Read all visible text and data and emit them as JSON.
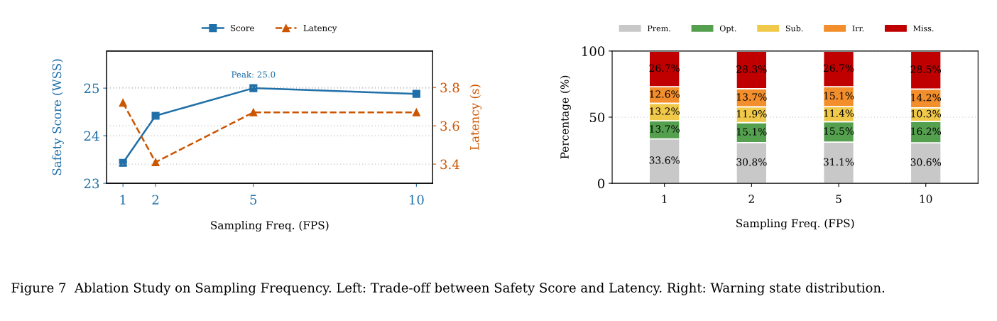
{
  "chart_data": [
    {
      "type": "line",
      "xlabel": "Sampling Freq. (FPS)",
      "ylabel": "Safety Score (WSS)",
      "y2label": "Latency (s)",
      "x": [
        1,
        2,
        5,
        10
      ],
      "series": [
        {
          "name": "Score",
          "color": "#1f6fa8",
          "values": [
            23.43,
            24.42,
            25.0,
            24.88
          ],
          "marker": "square",
          "line_style": "solid"
        },
        {
          "name": "Latency",
          "color": "#cc5500",
          "values": [
            3.72,
            3.41,
            3.67,
            3.67
          ],
          "marker": "triangle",
          "line_style": "dashed",
          "axis": "y2"
        }
      ],
      "xlim": [
        0.5,
        10.5
      ],
      "xticks": [
        1,
        2,
        5,
        10
      ],
      "ylim": [
        23,
        25.78
      ],
      "yticks": [
        23,
        24,
        25
      ],
      "y2lim": [
        3.3,
        3.99
      ],
      "y2ticks": [
        3.4,
        3.6,
        3.8
      ],
      "grid": "y",
      "legend": "top",
      "annotations": [
        {
          "text": "Peak: 25.0",
          "x": 5,
          "y": 25.0
        },
        "Figure 7  Ablation Study on Sampling Frequency. Left: Trade-off between Safety Score and Latency. Right: Warning state distribution."
      ]
    },
    {
      "type": "bar",
      "stacked": true,
      "xlabel": "Sampling Freq. (FPS)",
      "ylabel": "Percentage (%)",
      "categories": [
        "1",
        "2",
        "5",
        "10"
      ],
      "series": [
        {
          "name": "Prem.",
          "color": "#c8c8c8",
          "values": [
            33.6,
            30.8,
            31.1,
            30.6
          ],
          "value_labels": [
            "33.6%",
            "30.8%",
            "31.1%",
            "30.6%"
          ]
        },
        {
          "name": "Opt.",
          "color": "#55a04f",
          "values": [
            13.7,
            15.1,
            15.5,
            16.2
          ],
          "value_labels": [
            "13.7%",
            "15.1%",
            "15.5%",
            "16.2%"
          ]
        },
        {
          "name": "Sub.",
          "color": "#f0c94a",
          "values": [
            13.2,
            11.9,
            11.4,
            10.3
          ],
          "value_labels": [
            "13.2%",
            "11.9%",
            "11.4%",
            "10.3%"
          ]
        },
        {
          "name": "Irr.",
          "color": "#f28e2b",
          "values": [
            12.6,
            13.7,
            15.1,
            14.2
          ],
          "value_labels": [
            "12.6%",
            "13.7%",
            "15.1%",
            "14.2%"
          ]
        },
        {
          "name": "Miss.",
          "color": "#c00000",
          "values": [
            26.7,
            28.3,
            26.7,
            28.5
          ],
          "value_labels": [
            "26.7%",
            "28.3%",
            "26.7%",
            "28.5%"
          ]
        }
      ],
      "ylim": [
        0,
        100
      ],
      "yticks": [
        0,
        50,
        100
      ],
      "grid": "y",
      "legend": "top"
    }
  ]
}
